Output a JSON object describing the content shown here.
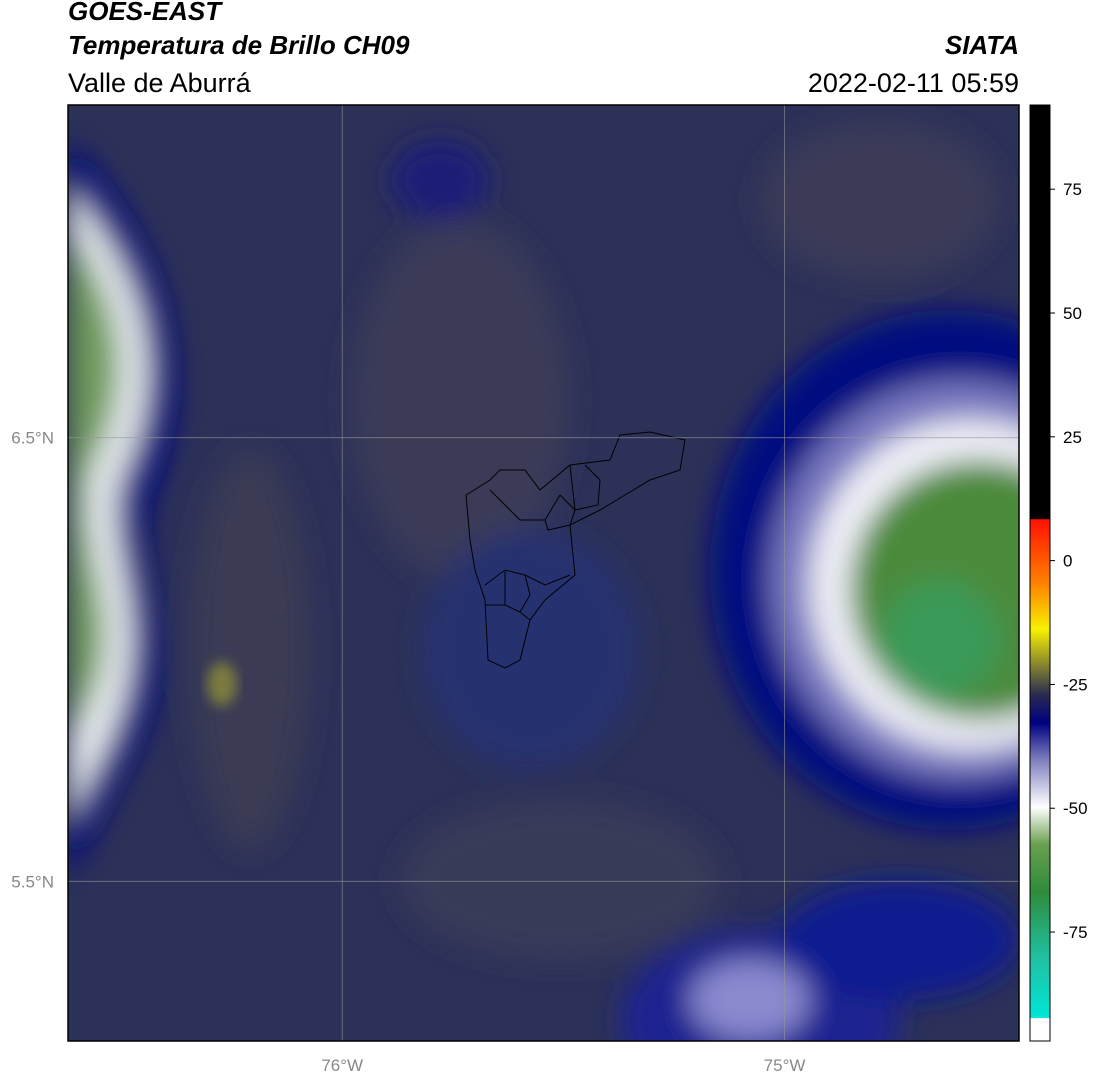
{
  "header": {
    "title": "GOES-EAST",
    "subtitle": "Temperatura de Brillo CH09",
    "region": "Valle de Aburrá",
    "source": "SIATA",
    "datetime": "2022-02-11 05:59"
  },
  "map": {
    "xlim": [
      -76.62,
      -74.47
    ],
    "ylim": [
      5.14,
      7.25
    ],
    "xticks": [
      {
        "value": -76,
        "label": "76°W"
      },
      {
        "value": -75,
        "label": "75°W"
      }
    ],
    "yticks": [
      {
        "value": 6.5,
        "label": "6.5°N"
      },
      {
        "value": 5.5,
        "label": "5.5°N"
      }
    ],
    "grid": true
  },
  "colorbar": {
    "lim": [
      -97,
      92
    ],
    "ticks": [
      75,
      50,
      25,
      0,
      -25,
      -50,
      -75
    ]
  }
}
